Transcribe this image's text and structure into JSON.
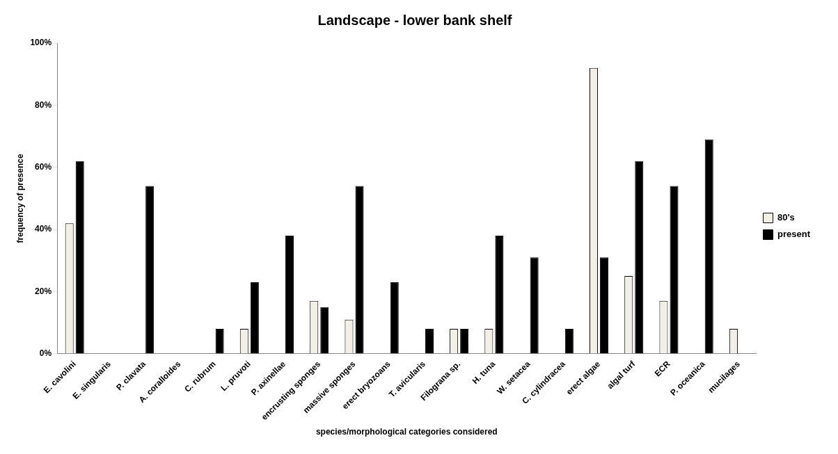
{
  "chart_data": {
    "type": "bar",
    "title": "Landscape - lower bank shelf",
    "xlabel": "species/morphological categories considered",
    "ylabel": "frequency of presence",
    "categories": [
      "E. cavolini",
      "E. singularis",
      "P. clavata",
      "A. coralloides",
      "C. rubrum",
      "L. pruvoti",
      "P. axinellae",
      "encrusting sponges",
      "massive sponges",
      "erect bryozoans",
      "T. avicularis",
      "Filograna sp.",
      "H. tuna",
      "W. setacea",
      "C. cylindracea",
      "erect algae",
      "algal turf",
      "ECR",
      "P. oceanica",
      "mucilages"
    ],
    "series": [
      {
        "name": "80's",
        "color": "#f2efe6",
        "values": [
          42,
          0,
          0,
          0,
          0,
          8,
          0,
          17,
          11,
          0,
          0,
          8,
          8,
          0,
          0,
          92,
          25,
          17,
          0,
          8
        ]
      },
      {
        "name": "present",
        "color": "#000000",
        "values": [
          62,
          0,
          54,
          0,
          8,
          23,
          38,
          15,
          54,
          23,
          8,
          8,
          38,
          31,
          8,
          31,
          62,
          54,
          69,
          0
        ]
      }
    ],
    "ylim": [
      0,
      100
    ],
    "yticks": [
      {
        "value": 0,
        "label": "0%"
      },
      {
        "value": 20,
        "label": "20%"
      },
      {
        "value": 40,
        "label": "40%"
      },
      {
        "value": 60,
        "label": "60%"
      },
      {
        "value": 80,
        "label": "80%"
      },
      {
        "value": 100,
        "label": "100%"
      }
    ],
    "grid": false,
    "legend": "right"
  }
}
